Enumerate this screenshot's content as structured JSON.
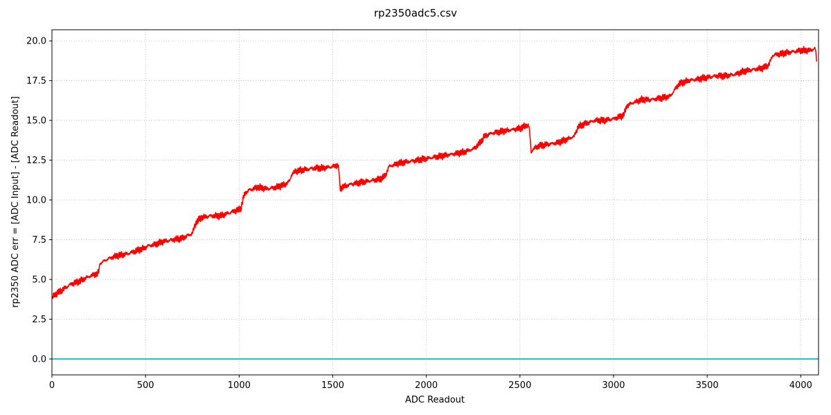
{
  "chart_data": {
    "type": "line",
    "title": "rp2350adc5.csv",
    "xlabel": "ADC Readout",
    "ylabel": "rp2350 ADC err = [ADC Input] - [ADC Readout]",
    "xlim": [
      0,
      4095
    ],
    "ylim": [
      -1.0,
      20.7
    ],
    "xticks": [
      0,
      500,
      1000,
      1500,
      2000,
      2500,
      3000,
      3500,
      4000
    ],
    "yticks": [
      0.0,
      2.5,
      5.0,
      7.5,
      10.0,
      12.5,
      15.0,
      17.5,
      20.0
    ],
    "xtick_labels": [
      "0",
      "500",
      "1000",
      "1500",
      "2000",
      "2500",
      "3000",
      "3500",
      "4000"
    ],
    "ytick_labels": [
      "0.0",
      "2.5",
      "5.0",
      "7.5",
      "10.0",
      "12.5",
      "15.0",
      "17.5",
      "20.0"
    ],
    "grid": true,
    "grid_style": "dotted",
    "series": [
      {
        "color": "#ff0000",
        "x": [
          0,
          10,
          50,
          100,
          150,
          200,
          250,
          255,
          300,
          350,
          400,
          450,
          500,
          510,
          550,
          600,
          650,
          700,
          750,
          770,
          800,
          850,
          900,
          950,
          1000,
          1010,
          1020,
          1030,
          1050,
          1100,
          1150,
          1200,
          1250,
          1270,
          1280,
          1300,
          1350,
          1400,
          1450,
          1500,
          1530,
          1535,
          1540,
          1550,
          1600,
          1650,
          1700,
          1750,
          1780,
          1790,
          1800,
          1850,
          1900,
          1950,
          2000,
          2050,
          2100,
          2150,
          2200,
          2250,
          2280,
          2300,
          2310,
          2350,
          2400,
          2450,
          2500,
          2540,
          2550,
          2555,
          2560,
          2570,
          2600,
          2650,
          2700,
          2750,
          2790,
          2800,
          2810,
          2850,
          2900,
          2950,
          3000,
          3050,
          3060,
          3070,
          3100,
          3150,
          3200,
          3250,
          3300,
          3320,
          3330,
          3350,
          3400,
          3450,
          3500,
          3550,
          3600,
          3650,
          3700,
          3750,
          3800,
          3830,
          3840,
          3850,
          3900,
          3950,
          4000,
          4050,
          4070,
          4075,
          4080,
          4085
        ],
        "y": [
          3.8,
          4.0,
          4.3,
          4.7,
          4.9,
          5.2,
          5.4,
          6.0,
          6.3,
          6.5,
          6.6,
          6.8,
          7.0,
          7.1,
          7.2,
          7.4,
          7.5,
          7.6,
          7.9,
          8.6,
          8.9,
          9.0,
          9.0,
          9.2,
          9.4,
          9.5,
          10.0,
          10.4,
          10.6,
          10.8,
          10.7,
          10.8,
          11.0,
          11.2,
          11.6,
          11.8,
          11.9,
          12.0,
          12.0,
          12.1,
          12.2,
          11.5,
          10.7,
          10.8,
          11.0,
          11.1,
          11.2,
          11.3,
          11.5,
          11.8,
          12.1,
          12.3,
          12.4,
          12.5,
          12.6,
          12.7,
          12.8,
          12.9,
          13.0,
          13.2,
          13.5,
          13.8,
          14.0,
          14.2,
          14.3,
          14.4,
          14.5,
          14.7,
          14.6,
          13.8,
          13.0,
          13.2,
          13.4,
          13.5,
          13.6,
          13.8,
          14.0,
          14.3,
          14.6,
          14.8,
          15.0,
          15.0,
          15.1,
          15.3,
          15.5,
          15.9,
          16.1,
          16.3,
          16.3,
          16.4,
          16.5,
          16.8,
          17.0,
          17.3,
          17.5,
          17.6,
          17.7,
          17.8,
          17.8,
          17.9,
          18.1,
          18.2,
          18.3,
          18.5,
          18.8,
          19.1,
          19.2,
          19.3,
          19.4,
          19.4,
          19.5,
          19.6,
          19.4,
          18.7
        ]
      },
      {
        "color": "#00bfbf",
        "x": [
          0,
          4095
        ],
        "y": [
          0.0,
          0.0
        ]
      }
    ]
  }
}
